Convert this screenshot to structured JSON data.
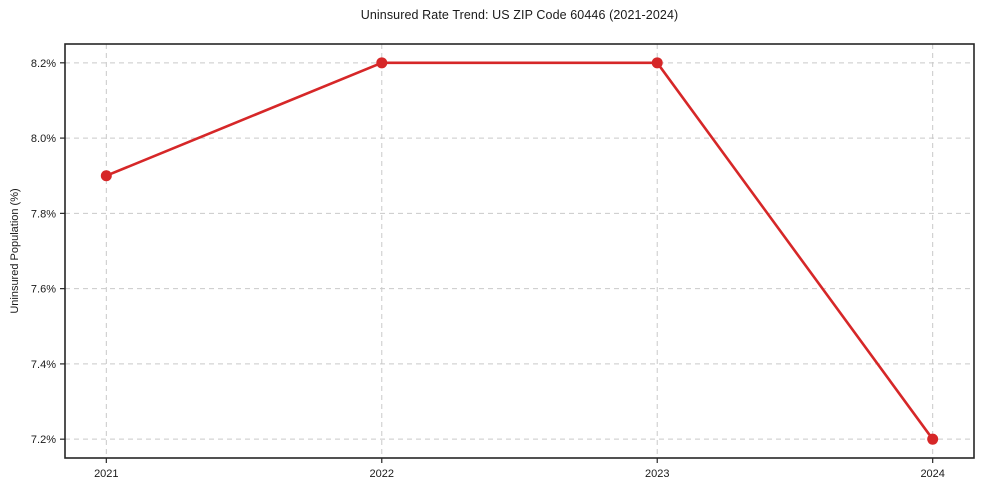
{
  "chart_data": {
    "type": "line",
    "title": "Uninsured Rate Trend: US ZIP Code 60446 (2021-2024)",
    "xlabel": "",
    "ylabel": "Uninsured Population (%)",
    "x": [
      2021,
      2022,
      2023,
      2024
    ],
    "x_tick_labels": [
      "2021",
      "2022",
      "2023",
      "2024"
    ],
    "series": [
      {
        "name": "Uninsured Population (%)",
        "values": [
          7.9,
          8.2,
          8.2,
          7.2
        ]
      }
    ],
    "y_ticks": [
      7.2,
      7.4,
      7.6,
      7.8,
      8.0,
      8.2
    ],
    "y_tick_labels": [
      "7.2%",
      "7.4%",
      "7.6%",
      "7.8%",
      "8.0%",
      "8.2%"
    ],
    "xlim": [
      2020.85,
      2024.15
    ],
    "ylim": [
      7.15,
      8.25
    ],
    "grid": true,
    "grid_style": "dashed",
    "legend_position": "none",
    "colors": {
      "line": "#d62728",
      "marker": "#d62728",
      "grid": "#c9c9c9",
      "spine": "#262626",
      "text": "#1a1a1a",
      "background": "#ffffff"
    }
  }
}
